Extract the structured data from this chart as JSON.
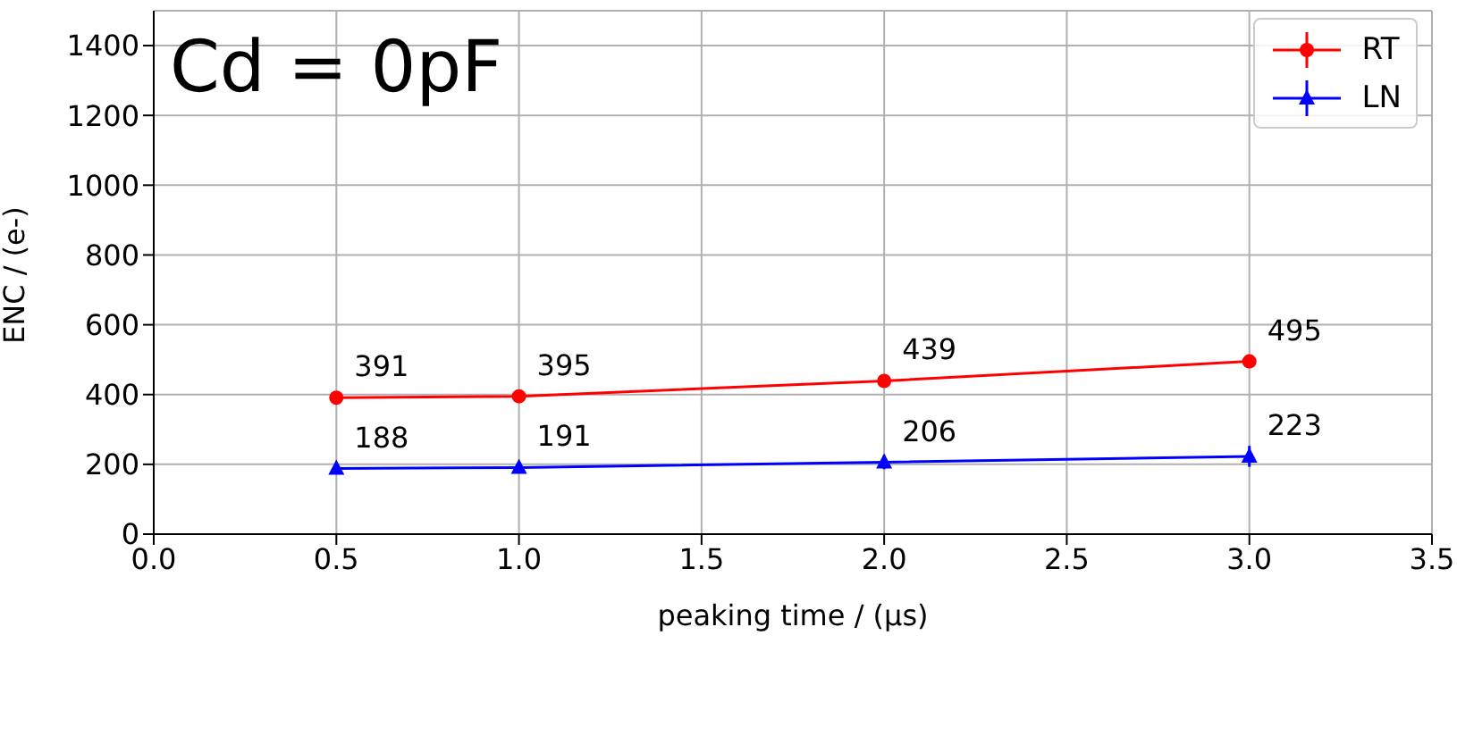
{
  "chart_data": {
    "type": "line",
    "title": "Cd = 0pF",
    "xlabel": "peaking time / (μs)",
    "ylabel": "ENC / (e-)",
    "x": [
      0.5,
      1.0,
      2.0,
      3.0
    ],
    "series": [
      {
        "name": "RT",
        "color": "#ff0000",
        "values": [
          391,
          395,
          439,
          495
        ],
        "errors": [
          5,
          5,
          5,
          5
        ],
        "marker": "circle"
      },
      {
        "name": "LN",
        "color": "#0000ff",
        "values": [
          188,
          191,
          206,
          223
        ],
        "errors": [
          8,
          8,
          20,
          30
        ],
        "marker": "triangle"
      }
    ],
    "xlim": [
      0,
      3.5
    ],
    "xticks": [
      {
        "value": 0,
        "label": "0.0"
      },
      {
        "value": 0.5,
        "label": "0.5"
      },
      {
        "value": 1,
        "label": "1.0"
      },
      {
        "value": 1.5,
        "label": "1.5"
      },
      {
        "value": 2,
        "label": "2.0"
      },
      {
        "value": 2.5,
        "label": "2.5"
      },
      {
        "value": 3,
        "label": "3.0"
      },
      {
        "value": 3.5,
        "label": "3.5"
      }
    ],
    "ylim": [
      0,
      1500
    ],
    "yticks": [
      0,
      200,
      400,
      600,
      800,
      1000,
      1200,
      1400
    ],
    "grid": true,
    "legend": "top right",
    "data_labels": true,
    "line_style": "solid"
  }
}
